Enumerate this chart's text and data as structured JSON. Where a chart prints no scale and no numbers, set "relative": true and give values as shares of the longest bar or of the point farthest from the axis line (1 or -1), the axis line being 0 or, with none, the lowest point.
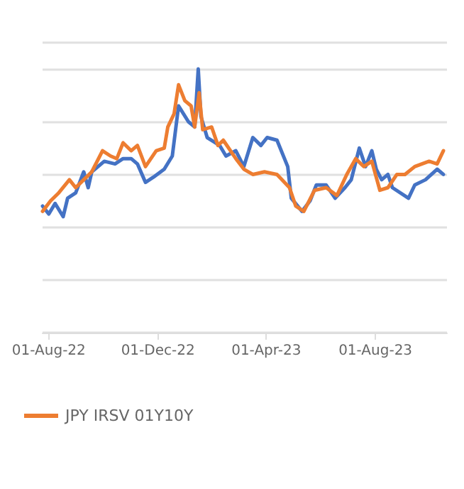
{
  "chart_data": {
    "type": "line",
    "relative": true,
    "grid": "y",
    "legend": "bottom left",
    "marker": "none",
    "line_style": "solid",
    "xlim": [
      "2022-07-25",
      "2023-10-20"
    ],
    "xticks": [
      {
        "value": "2022-08-01",
        "label": "01-Aug-22"
      },
      {
        "value": "2022-12-01",
        "label": "01-Dec-22"
      },
      {
        "value": "2023-04-01",
        "label": "01-Apr-23"
      },
      {
        "value": "2023-08-01",
        "label": "01-Aug-23"
      }
    ],
    "series": [
      {
        "color": "#4472c4",
        "x": [
          "2022-07-25",
          "2022-08-01",
          "2022-08-08",
          "2022-08-17",
          "2022-08-22",
          "2022-08-31",
          "2022-09-09",
          "2022-09-14",
          "2022-09-18",
          "2022-10-02",
          "2022-10-14",
          "2022-10-23",
          "2022-11-01",
          "2022-11-08",
          "2022-11-17",
          "2022-11-26",
          "2022-12-08",
          "2022-12-17",
          "2022-12-24",
          "2023-01-04",
          "2023-01-11",
          "2023-01-15",
          "2023-01-18",
          "2023-01-25",
          "2023-02-08",
          "2023-02-15",
          "2023-02-26",
          "2023-03-07",
          "2023-03-17",
          "2023-03-26",
          "2023-04-02",
          "2023-04-13",
          "2023-04-25",
          "2023-04-29",
          "2023-05-11",
          "2023-05-20",
          "2023-05-27",
          "2023-06-07",
          "2023-06-17",
          "2023-06-28",
          "2023-07-05",
          "2023-07-14",
          "2023-07-21",
          "2023-07-28",
          "2023-08-02",
          "2023-08-08",
          "2023-08-15",
          "2023-08-20",
          "2023-09-07",
          "2023-09-14",
          "2023-09-26",
          "2023-10-09",
          "2023-10-16"
        ],
        "values": [
          0.48,
          0.45,
          0.49,
          0.44,
          0.51,
          0.53,
          0.61,
          0.55,
          0.61,
          0.65,
          0.64,
          0.66,
          0.66,
          0.64,
          0.57,
          0.59,
          0.62,
          0.67,
          0.86,
          0.8,
          0.78,
          1,
          0.82,
          0.74,
          0.71,
          0.67,
          0.69,
          0.63,
          0.74,
          0.71,
          0.74,
          0.73,
          0.63,
          0.51,
          0.46,
          0.5,
          0.56,
          0.56,
          0.51,
          0.55,
          0.58,
          0.7,
          0.63,
          0.69,
          0.62,
          0.58,
          0.6,
          0.55,
          0.51,
          0.56,
          0.58,
          0.62,
          0.6
        ]
      },
      {
        "name": "JPY IRSV 01Y10Y",
        "color": "#ed7d31",
        "x": [
          "2022-07-25",
          "2022-08-03",
          "2022-08-12",
          "2022-08-24",
          "2022-08-31",
          "2022-09-09",
          "2022-09-18",
          "2022-09-30",
          "2022-10-09",
          "2022-10-16",
          "2022-10-23",
          "2022-11-01",
          "2022-11-08",
          "2022-11-17",
          "2022-11-29",
          "2022-12-08",
          "2022-12-12",
          "2022-12-19",
          "2022-12-24",
          "2022-12-31",
          "2023-01-07",
          "2023-01-11",
          "2023-01-16",
          "2023-01-20",
          "2023-01-30",
          "2023-02-06",
          "2023-02-12",
          "2023-02-26",
          "2023-03-07",
          "2023-03-17",
          "2023-03-30",
          "2023-04-13",
          "2023-04-27",
          "2023-05-04",
          "2023-05-13",
          "2023-05-25",
          "2023-06-07",
          "2023-06-19",
          "2023-06-30",
          "2023-07-10",
          "2023-07-19",
          "2023-07-28",
          "2023-08-06",
          "2023-08-15",
          "2023-08-25",
          "2023-09-03",
          "2023-09-14",
          "2023-09-30",
          "2023-10-09",
          "2023-10-16"
        ],
        "values": [
          0.46,
          0.5,
          0.53,
          0.58,
          0.55,
          0.58,
          0.61,
          0.69,
          0.67,
          0.66,
          0.72,
          0.69,
          0.71,
          0.63,
          0.69,
          0.7,
          0.78,
          0.83,
          0.94,
          0.88,
          0.86,
          0.78,
          0.91,
          0.77,
          0.78,
          0.71,
          0.73,
          0.66,
          0.62,
          0.6,
          0.61,
          0.6,
          0.55,
          0.48,
          0.46,
          0.54,
          0.55,
          0.52,
          0.6,
          0.66,
          0.63,
          0.65,
          0.54,
          0.55,
          0.6,
          0.6,
          0.63,
          0.65,
          0.64,
          0.69
        ]
      }
    ]
  }
}
